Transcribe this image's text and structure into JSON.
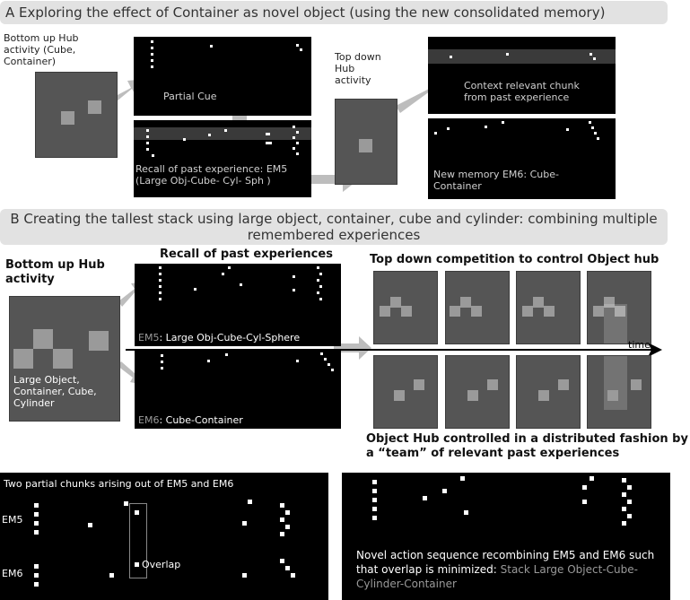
{
  "sectionA": {
    "title": "A Exploring the effect of Container as novel object (using the new consolidated memory)",
    "hub_bottomup_label": "Bottom up Hub activity (Cube, Container)",
    "partial_cue_label": "Partial Cue",
    "recall_label": "Recall of past experience: EM5 (Large Obj-Cube- Cyl- Sph )",
    "topdown_label": "Top down Hub activity",
    "context_label": "Context relevant chunk from past experience",
    "new_memory_label": "New memory EM6: Cube-Container"
  },
  "sectionB": {
    "title": "B Creating the tallest stack using large object, container, cube and cylinder: combining multiple remembered experiences",
    "hub_bottomup_label": "Bottom up Hub activity",
    "recall_heading": "Recall of past experiences",
    "hub_objects_label": "Large Object, Container, Cube, Cylinder",
    "em5_prefix": "EM5",
    "em5_suffix": ": Large Obj-Cube-Cyl-Sphere",
    "em6_prefix": "EM6",
    "em6_suffix": ": Cube-Container",
    "competition_label": "Top down competition to control Object hub",
    "time_label": "time",
    "distributed_label": "Object Hub controlled in a distributed fashion by a “team” of relevant past experiences"
  },
  "sectionC": {
    "chunks_title": "Two partial chunks arising out of EM5 and EM6",
    "em5_label": "EM5",
    "em6_label": "EM6",
    "overlap_label": "Overlap",
    "novel_label": "Novel action sequence recombining EM5 and EM6 such that overlap is minimized:",
    "stack_label": "Stack Large Object-Cube-Cylinder-Container"
  }
}
